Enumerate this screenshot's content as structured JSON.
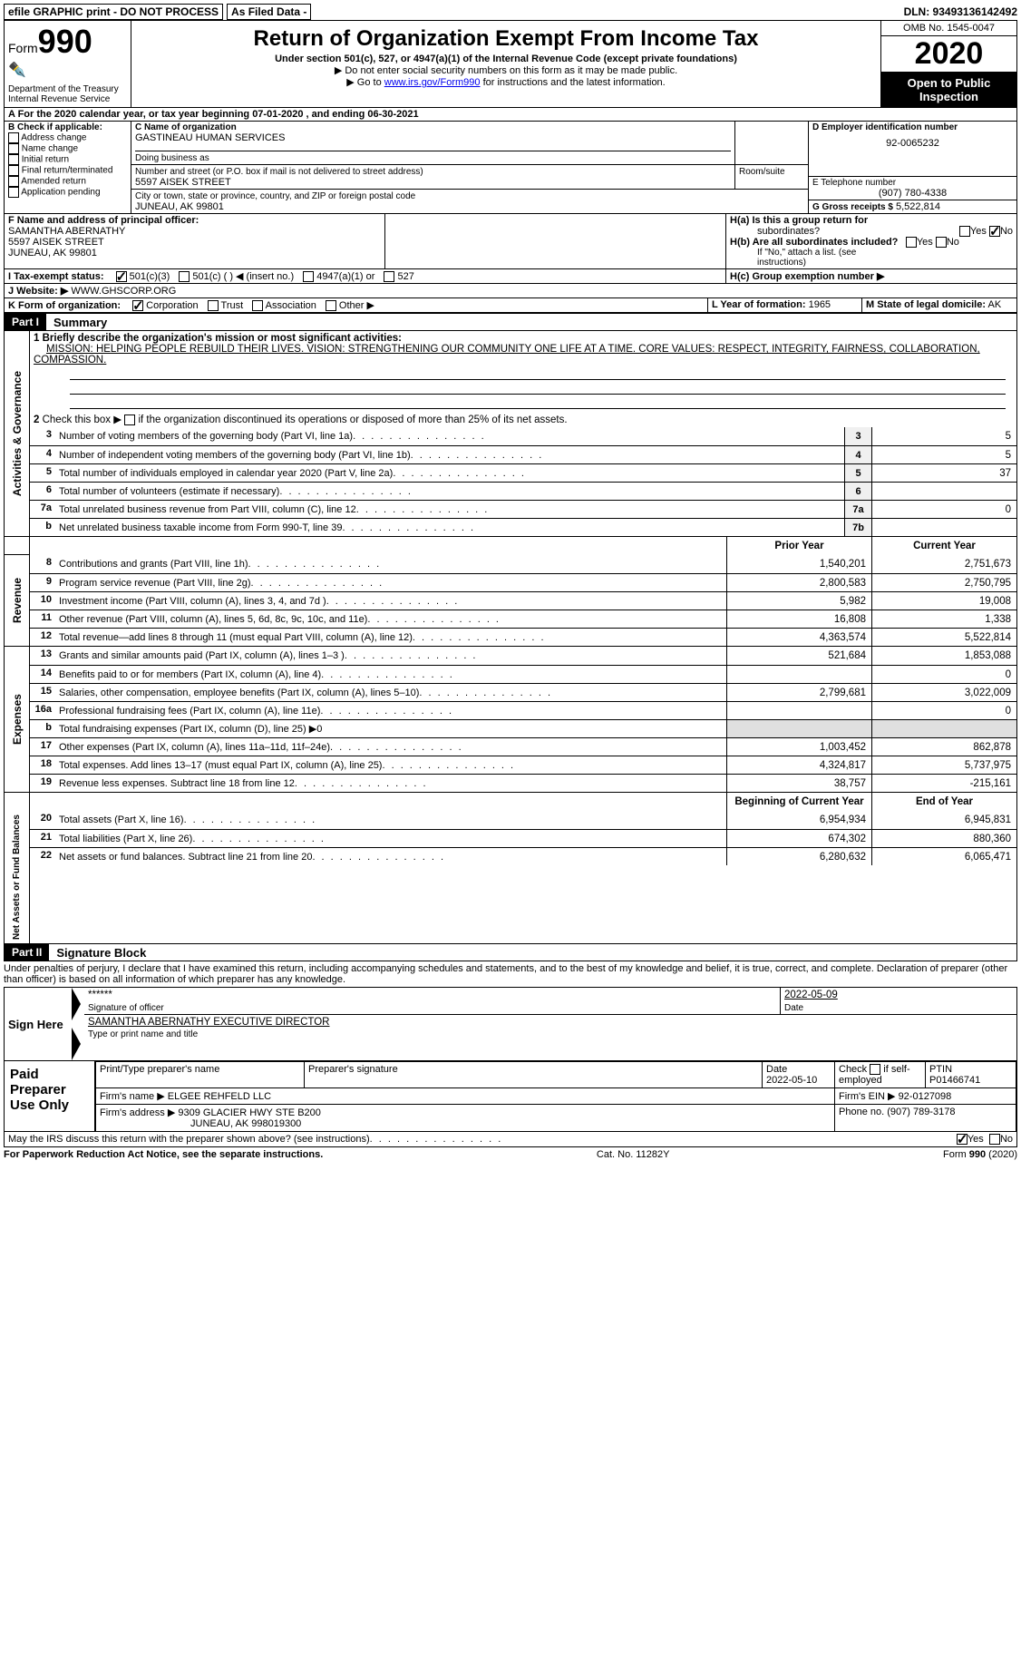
{
  "topbar": {
    "efile": "efile GRAPHIC print - DO NOT PROCESS",
    "asfiled": "As Filed Data -",
    "dln": "DLN: 93493136142492"
  },
  "header": {
    "form_label": "Form",
    "form_num": "990",
    "dept": "Department of the Treasury",
    "irs": "Internal Revenue Service",
    "title": "Return of Organization Exempt From Income Tax",
    "sub": "Under section 501(c), 527, or 4947(a)(1) of the Internal Revenue Code (except private foundations)",
    "note1": "▶ Do not enter social security numbers on this form as it may be made public.",
    "note2_pre": "▶ Go to ",
    "note2_link": "www.irs.gov/Form990",
    "note2_post": " for instructions and the latest information.",
    "omb": "OMB No. 1545-0047",
    "year": "2020",
    "inspect": "Open to Public Inspection"
  },
  "lineA": "A   For the 2020 calendar year, or tax year beginning 07-01-2020   , and ending 06-30-2021",
  "boxB": {
    "title": "B Check if applicable:",
    "items": [
      "Address change",
      "Name change",
      "Initial return",
      "Final return/terminated",
      "Amended return",
      "Application pending"
    ]
  },
  "boxC": {
    "label": "C Name of organization",
    "name": "GASTINEAU HUMAN SERVICES",
    "dba_label": "Doing business as",
    "street_label": "Number and street (or P.O. box if mail is not delivered to street address)",
    "room_label": "Room/suite",
    "street": "5597 AISEK STREET",
    "city_label": "City or town, state or province, country, and ZIP or foreign postal code",
    "city": "JUNEAU, AK  99801"
  },
  "boxD": {
    "label": "D Employer identification number",
    "val": "92-0065232"
  },
  "boxE": {
    "label": "E Telephone number",
    "val": "(907) 780-4338"
  },
  "boxG": {
    "label": "G Gross receipts $",
    "val": "5,522,814"
  },
  "boxF": {
    "label": "F  Name and address of principal officer:",
    "name": "SAMANTHA ABERNATHY",
    "street": "5597 AISEK STREET",
    "city": "JUNEAU, AK  99801"
  },
  "boxH": {
    "a": "H(a)  Is this a group return for",
    "a2": "subordinates?",
    "b": "H(b)  Are all subordinates included?",
    "b2": "If \"No,\" attach a list. (see instructions)",
    "c": "H(c)  Group exemption number ▶"
  },
  "lineI": {
    "label": "I   Tax-exempt status:",
    "opts": [
      "501(c)(3)",
      "501(c) (  ) ◀ (insert no.)",
      "4947(a)(1) or",
      "527"
    ]
  },
  "lineJ": {
    "label": "J   Website: ▶",
    "val": "WWW.GHSCORP.ORG"
  },
  "lineK": {
    "label": "K Form of organization:",
    "opts": [
      "Corporation",
      "Trust",
      "Association",
      "Other ▶"
    ]
  },
  "lineL": {
    "label": "L Year of formation:",
    "val": "1965"
  },
  "lineM": {
    "label": "M State of legal domicile:",
    "val": "AK"
  },
  "part1": {
    "label": "Part I",
    "title": "Summary"
  },
  "gov": {
    "label": "Activities & Governance",
    "l1": "1  Briefly describe the organization's mission or most significant activities:",
    "mission": "MISSION: HELPING PEOPLE REBUILD THEIR LIVES. VISION: STRENGTHENING OUR COMMUNITY ONE LIFE AT A TIME. CORE VALUES: RESPECT, INTEGRITY, FAIRNESS, COLLABORATION, COMPASSION.",
    "l2": "Check this box ▶           if the organization discontinued its operations or disposed of more than 25% of its net assets.",
    "rows": [
      {
        "n": "3",
        "t": "Number of voting members of the governing body (Part VI, line 1a)",
        "box": "3",
        "v": "5"
      },
      {
        "n": "4",
        "t": "Number of independent voting members of the governing body (Part VI, line 1b)",
        "box": "4",
        "v": "5"
      },
      {
        "n": "5",
        "t": "Total number of individuals employed in calendar year 2020 (Part V, line 2a)",
        "box": "5",
        "v": "37"
      },
      {
        "n": "6",
        "t": "Total number of volunteers (estimate if necessary)",
        "box": "6",
        "v": ""
      },
      {
        "n": "7a",
        "t": "Total unrelated business revenue from Part VIII, column (C), line 12",
        "box": "7a",
        "v": "0"
      },
      {
        "n": "b",
        "t": "Net unrelated business taxable income from Form 990-T, line 39",
        "box": "7b",
        "v": ""
      }
    ]
  },
  "cols": {
    "prior": "Prior Year",
    "current": "Current Year"
  },
  "revenue": {
    "label": "Revenue",
    "rows": [
      {
        "n": "8",
        "t": "Contributions and grants (Part VIII, line 1h)",
        "p": "1,540,201",
        "c": "2,751,673"
      },
      {
        "n": "9",
        "t": "Program service revenue (Part VIII, line 2g)",
        "p": "2,800,583",
        "c": "2,750,795"
      },
      {
        "n": "10",
        "t": "Investment income (Part VIII, column (A), lines 3, 4, and 7d )",
        "p": "5,982",
        "c": "19,008"
      },
      {
        "n": "11",
        "t": "Other revenue (Part VIII, column (A), lines 5, 6d, 8c, 9c, 10c, and 11e)",
        "p": "16,808",
        "c": "1,338"
      },
      {
        "n": "12",
        "t": "Total revenue—add lines 8 through 11 (must equal Part VIII, column (A), line 12)",
        "p": "4,363,574",
        "c": "5,522,814"
      }
    ]
  },
  "expenses": {
    "label": "Expenses",
    "rows": [
      {
        "n": "13",
        "t": "Grants and similar amounts paid (Part IX, column (A), lines 1–3 )",
        "p": "521,684",
        "c": "1,853,088"
      },
      {
        "n": "14",
        "t": "Benefits paid to or for members (Part IX, column (A), line 4)",
        "p": "",
        "c": "0"
      },
      {
        "n": "15",
        "t": "Salaries, other compensation, employee benefits (Part IX, column (A), lines 5–10)",
        "p": "2,799,681",
        "c": "3,022,009"
      },
      {
        "n": "16a",
        "t": "Professional fundraising fees (Part IX, column (A), line 11e)",
        "p": "",
        "c": "0"
      },
      {
        "n": "b",
        "t": "Total fundraising expenses (Part IX, column (D), line 25) ▶0",
        "p": "",
        "c": "",
        "gray": true
      },
      {
        "n": "17",
        "t": "Other expenses (Part IX, column (A), lines 11a–11d, 11f–24e)",
        "p": "1,003,452",
        "c": "862,878"
      },
      {
        "n": "18",
        "t": "Total expenses. Add lines 13–17 (must equal Part IX, column (A), line 25)",
        "p": "4,324,817",
        "c": "5,737,975"
      },
      {
        "n": "19",
        "t": "Revenue less expenses. Subtract line 18 from line 12",
        "p": "38,757",
        "c": "-215,161"
      }
    ]
  },
  "netassets": {
    "label": "Net Assets or Fund Balances",
    "cols": {
      "beg": "Beginning of Current Year",
      "end": "End of Year"
    },
    "rows": [
      {
        "n": "20",
        "t": "Total assets (Part X, line 16)",
        "p": "6,954,934",
        "c": "6,945,831"
      },
      {
        "n": "21",
        "t": "Total liabilities (Part X, line 26)",
        "p": "674,302",
        "c": "880,360"
      },
      {
        "n": "22",
        "t": "Net assets or fund balances. Subtract line 21 from line 20",
        "p": "6,280,632",
        "c": "6,065,471"
      }
    ]
  },
  "part2": {
    "label": "Part II",
    "title": "Signature Block"
  },
  "perjury": "Under penalties of perjury, I declare that I have examined this return, including accompanying schedules and statements, and to the best of my knowledge and belief, it is true, correct, and complete. Declaration of preparer (other than officer) is based on all information of which preparer has any knowledge.",
  "sign": {
    "here": "Sign Here",
    "stars": "******",
    "sig_of": "Signature of officer",
    "date": "2022-05-09",
    "date_lbl": "Date",
    "name": "SAMANTHA ABERNATHY  EXECUTIVE DIRECTOR",
    "name_lbl": "Type or print name and title"
  },
  "paid": {
    "label": "Paid Preparer Use Only",
    "h1": "Print/Type preparer's name",
    "h2": "Preparer's signature",
    "h3": "Date",
    "date": "2022-05-10",
    "h4": "Check          if self-employed",
    "h5": "PTIN",
    "ptin": "P01466741",
    "firm_lbl": "Firm's name      ▶",
    "firm": "ELGEE REHFELD LLC",
    "ein_lbl": "Firm's EIN ▶",
    "ein": "92-0127098",
    "addr_lbl": "Firm's address ▶",
    "addr1": "9309 GLACIER HWY STE B200",
    "addr2": "JUNEAU, AK  998019300",
    "phone_lbl": "Phone no.",
    "phone": "(907) 789-3178"
  },
  "discuss": "May the IRS discuss this return with the preparer shown above? (see instructions)",
  "footer": {
    "left": "For Paperwork Reduction Act Notice, see the separate instructions.",
    "mid": "Cat. No. 11282Y",
    "right_pre": "Form ",
    "right_bold": "990",
    "right_post": " (2020)"
  },
  "yesno": {
    "yes": "Yes",
    "no": "No"
  }
}
